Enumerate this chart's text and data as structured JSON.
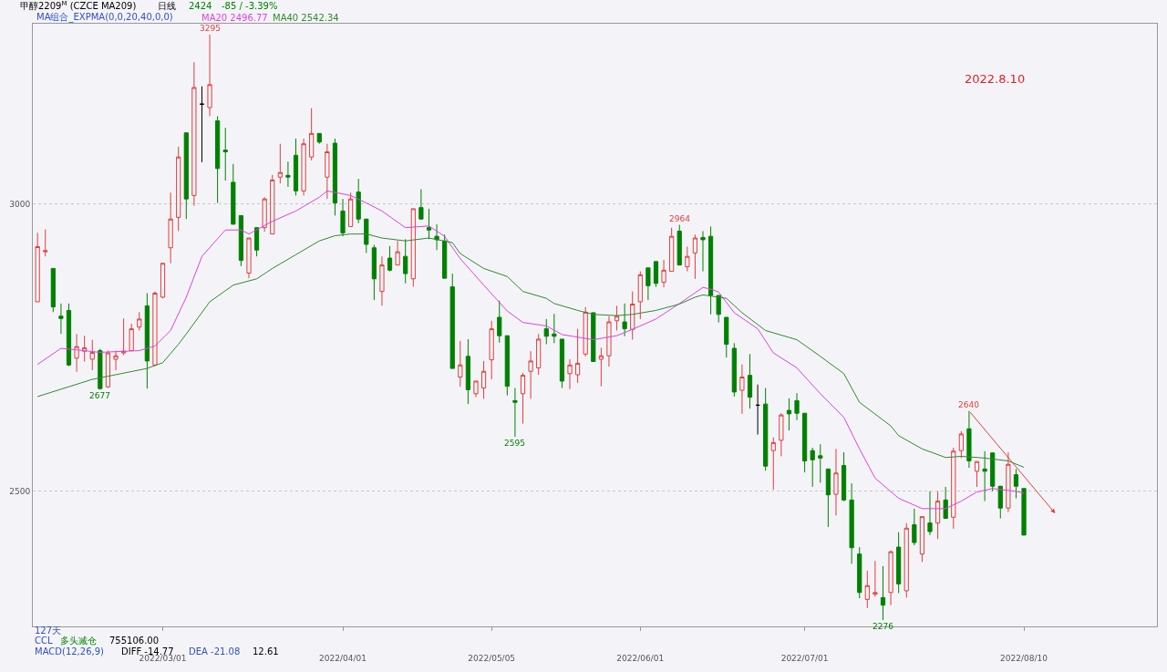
{
  "chart_data": {
    "type": "candlestick",
    "categories": [
      null,
      null,
      null,
      null,
      null,
      null,
      null,
      null,
      null,
      null,
      null,
      null,
      null,
      null,
      null,
      null,
      "2022/03/01",
      null,
      null,
      null,
      null,
      null,
      null,
      null,
      null,
      null,
      null,
      null,
      null,
      null,
      null,
      null,
      null,
      null,
      null,
      null,
      null,
      null,
      null,
      "2022/04/01",
      null,
      null,
      null,
      null,
      null,
      null,
      null,
      null,
      null,
      null,
      null,
      null,
      null,
      null,
      null,
      null,
      null,
      null,
      "2022/05/05",
      null,
      null,
      null,
      null,
      null,
      null,
      null,
      null,
      null,
      null,
      null,
      null,
      null,
      null,
      null,
      null,
      null,
      null,
      "2022/06/01",
      null,
      null,
      null,
      null,
      null,
      null,
      null,
      null,
      null,
      null,
      null,
      null,
      null,
      null,
      null,
      null,
      null,
      null,
      null,
      null,
      "2022/07/01",
      null,
      null,
      null,
      null,
      null,
      null,
      null,
      null,
      null,
      null,
      null,
      null,
      null,
      null,
      null,
      null,
      null,
      null,
      null,
      null,
      null,
      null,
      null,
      null,
      null,
      null,
      null,
      "2022/08/10"
    ],
    "ohlc": [
      [
        2830,
        2950,
        2830,
        2926
      ],
      [
        2917,
        2956,
        2909,
        2919
      ],
      [
        2888,
        2888,
        2812,
        2821
      ],
      [
        2805,
        2827,
        2774,
        2801
      ],
      [
        2815,
        2827,
        2718,
        2720
      ],
      [
        2732,
        2774,
        2708,
        2752
      ],
      [
        2744,
        2771,
        2726,
        2750
      ],
      [
        2730,
        2764,
        2711,
        2742
      ],
      [
        2745,
        2748,
        2677,
        2679
      ],
      [
        2682,
        2745,
        2680,
        2741
      ],
      [
        2730,
        2745,
        2711,
        2736
      ],
      [
        2741,
        2801,
        2737,
        2744
      ],
      [
        2745,
        2792,
        2744,
        2783
      ],
      [
        2786,
        2812,
        2780,
        2800
      ],
      [
        2823,
        2845,
        2679,
        2727
      ],
      [
        2720,
        2848,
        2718,
        2845
      ],
      [
        2838,
        2897,
        2836,
        2897
      ],
      [
        2924,
        3020,
        2897,
        2974
      ],
      [
        2977,
        3100,
        2953,
        3082
      ],
      [
        3124,
        3124,
        2974,
        3009
      ],
      [
        3015,
        3247,
        2997,
        3203
      ],
      [
        3174,
        3205,
        3073,
        3174
      ],
      [
        3168,
        3295,
        3153,
        3208
      ],
      [
        3145,
        3153,
        3002,
        3062
      ],
      [
        3094,
        3133,
        3041,
        3091
      ],
      [
        3038,
        3070,
        2965,
        2965
      ],
      [
        2980,
        2980,
        2892,
        2902
      ],
      [
        2880,
        2941,
        2871,
        2941
      ],
      [
        2959,
        2959,
        2909,
        2920
      ],
      [
        2959,
        3012,
        2952,
        3009
      ],
      [
        2948,
        3051,
        2948,
        3042
      ],
      [
        3047,
        3105,
        3036,
        3055
      ],
      [
        3050,
        3074,
        3030,
        3047
      ],
      [
        3085,
        3114,
        3015,
        3023
      ],
      [
        3023,
        3114,
        3015,
        3105
      ],
      [
        3082,
        3167,
        3076,
        3123
      ],
      [
        3123,
        3123,
        3105,
        3108
      ],
      [
        3047,
        3105,
        3009,
        3091
      ],
      [
        3106,
        3114,
        2980,
        3002
      ],
      [
        2988,
        3009,
        2944,
        2950
      ],
      [
        2961,
        3020,
        2961,
        3009
      ],
      [
        3021,
        3044,
        2967,
        2974
      ],
      [
        2974,
        2974,
        2915,
        2930
      ],
      [
        2924,
        2929,
        2833,
        2870
      ],
      [
        2848,
        2909,
        2823,
        2894
      ],
      [
        2906,
        2927,
        2883,
        2885
      ],
      [
        2894,
        2936,
        2894,
        2917
      ],
      [
        2909,
        2939,
        2862,
        2879
      ],
      [
        2870,
        2992,
        2856,
        2992
      ],
      [
        2994,
        3026,
        2974,
        2974
      ],
      [
        2959,
        2992,
        2939,
        2955
      ],
      [
        2944,
        2965,
        2920,
        2938
      ],
      [
        2936,
        2947,
        2871,
        2871
      ],
      [
        2856,
        2879,
        2714,
        2714
      ],
      [
        2699,
        2762,
        2682,
        2720
      ],
      [
        2735,
        2765,
        2652,
        2677
      ],
      [
        2670,
        2692,
        2664,
        2692
      ],
      [
        2680,
        2727,
        2661,
        2709
      ],
      [
        2729,
        2797,
        2695,
        2783
      ],
      [
        2803,
        2832,
        2759,
        2771
      ],
      [
        2771,
        2771,
        2667,
        2683
      ],
      [
        2658,
        2680,
        2595,
        2655
      ],
      [
        2670,
        2706,
        2618,
        2702
      ],
      [
        2709,
        2744,
        2661,
        2727
      ],
      [
        2715,
        2774,
        2703,
        2765
      ],
      [
        2783,
        2800,
        2756,
        2770
      ],
      [
        2774,
        2809,
        2758,
        2770
      ],
      [
        2765,
        2765,
        2680,
        2692
      ],
      [
        2705,
        2730,
        2678,
        2720
      ],
      [
        2703,
        2783,
        2689,
        2723
      ],
      [
        2739,
        2821,
        2735,
        2812
      ],
      [
        2811,
        2811,
        2726,
        2726
      ],
      [
        2730,
        2750,
        2683,
        2736
      ],
      [
        2736,
        2805,
        2717,
        2795
      ],
      [
        2797,
        2823,
        2780,
        2805
      ],
      [
        2795,
        2827,
        2770,
        2783
      ],
      [
        2782,
        2848,
        2764,
        2826
      ],
      [
        2830,
        2883,
        2800,
        2877
      ],
      [
        2889,
        2889,
        2833,
        2858
      ],
      [
        2900,
        2900,
        2856,
        2862
      ],
      [
        2864,
        2903,
        2855,
        2885
      ],
      [
        2883,
        2959,
        2883,
        2944
      ],
      [
        2953,
        2964,
        2894,
        2894
      ],
      [
        2891,
        2926,
        2883,
        2909
      ],
      [
        2915,
        2947,
        2870,
        2941
      ],
      [
        2942,
        2953,
        2883,
        2938
      ],
      [
        2944,
        2961,
        2808,
        2841
      ],
      [
        2841,
        2841,
        2794,
        2808
      ],
      [
        2803,
        2803,
        2733,
        2756
      ],
      [
        2749,
        2758,
        2665,
        2673
      ],
      [
        2676,
        2721,
        2635,
        2699
      ],
      [
        2702,
        2739,
        2644,
        2664
      ],
      [
        2650,
        2686,
        2599,
        2650
      ],
      [
        2652,
        2680,
        2536,
        2544
      ],
      [
        2571,
        2594,
        2503,
        2585
      ],
      [
        2589,
        2636,
        2561,
        2633
      ],
      [
        2641,
        2662,
        2606,
        2635
      ],
      [
        2658,
        2671,
        2624,
        2636
      ],
      [
        2636,
        2636,
        2533,
        2553
      ],
      [
        2571,
        2576,
        2508,
        2555
      ],
      [
        2562,
        2582,
        2515,
        2558
      ],
      [
        2539,
        2539,
        2438,
        2494
      ],
      [
        2495,
        2574,
        2458,
        2532
      ],
      [
        2545,
        2568,
        2483,
        2485
      ],
      [
        2485,
        2514,
        2374,
        2402
      ],
      [
        2391,
        2403,
        2314,
        2324
      ],
      [
        2312,
        2362,
        2297,
        2336
      ],
      [
        2321,
        2379,
        2317,
        2324
      ],
      [
        2315,
        2370,
        2276,
        2302
      ],
      [
        2324,
        2397,
        2302,
        2395
      ],
      [
        2403,
        2429,
        2323,
        2339
      ],
      [
        2327,
        2445,
        2315,
        2436
      ],
      [
        2442,
        2470,
        2406,
        2411
      ],
      [
        2391,
        2456,
        2377,
        2456
      ],
      [
        2445,
        2500,
        2424,
        2430
      ],
      [
        2445,
        2500,
        2417,
        2483
      ],
      [
        2485,
        2508,
        2453,
        2453
      ],
      [
        2455,
        2576,
        2435,
        2570
      ],
      [
        2571,
        2605,
        2558,
        2600
      ],
      [
        2609,
        2640,
        2541,
        2553
      ],
      [
        2535,
        2552,
        2508,
        2552
      ],
      [
        2539,
        2570,
        2483,
        2535
      ],
      [
        2567,
        2567,
        2500,
        2509
      ],
      [
        2509,
        2509,
        2453,
        2471
      ],
      [
        2471,
        2568,
        2464,
        2547
      ],
      [
        2529,
        2539,
        2488,
        2509
      ],
      [
        2505,
        2505,
        2423,
        2424
      ]
    ],
    "colors": [
      "#e03c3c",
      "#e03c3c",
      "#008000",
      "#008000",
      "#008000",
      "#e03c3c",
      "#e03c3c",
      "#e03c3c",
      "#008000",
      "#e03c3c",
      "#e03c3c",
      "#e03c3c",
      "#e03c3c",
      "#e03c3c",
      "#008000",
      "#e03c3c",
      "#e03c3c",
      "#e03c3c",
      "#e03c3c",
      "#008000",
      "#e03c3c",
      "#000000",
      "#e03c3c",
      "#008000",
      "#008000",
      "#008000",
      "#008000",
      "#e03c3c",
      "#008000",
      "#e03c3c",
      "#e03c3c",
      "#e03c3c",
      "#008000",
      "#008000",
      "#e03c3c",
      "#e03c3c",
      "#008000",
      "#e03c3c",
      "#008000",
      "#008000",
      "#e03c3c",
      "#008000",
      "#008000",
      "#008000",
      "#e03c3c",
      "#008000",
      "#e03c3c",
      "#008000",
      "#e03c3c",
      "#008000",
      "#008000",
      "#008000",
      "#008000",
      "#008000",
      "#e03c3c",
      "#008000",
      "#e03c3c",
      "#e03c3c",
      "#e03c3c",
      "#008000",
      "#008000",
      "#008000",
      "#e03c3c",
      "#e03c3c",
      "#e03c3c",
      "#008000",
      "#008000",
      "#008000",
      "#e03c3c",
      "#e03c3c",
      "#e03c3c",
      "#008000",
      "#e03c3c",
      "#e03c3c",
      "#e03c3c",
      "#008000",
      "#e03c3c",
      "#e03c3c",
      "#008000",
      "#008000",
      "#e03c3c",
      "#e03c3c",
      "#008000",
      "#e03c3c",
      "#e03c3c",
      "#008000",
      "#008000",
      "#008000",
      "#008000",
      "#008000",
      "#e03c3c",
      "#008000",
      "#000000",
      "#008000",
      "#e03c3c",
      "#e03c3c",
      "#008000",
      "#008000",
      "#008000",
      "#008000",
      "#008000",
      "#008000",
      "#e03c3c",
      "#008000",
      "#008000",
      "#008000",
      "#e03c3c",
      "#e03c3c",
      "#008000",
      "#e03c3c",
      "#008000",
      "#e03c3c",
      "#008000",
      "#e03c3c",
      "#008000",
      "#e03c3c",
      "#008000",
      "#e03c3c",
      "#e03c3c",
      "#008000",
      "#e03c3c",
      "#008000",
      "#008000",
      "#008000",
      "#e03c3c",
      "#008000",
      "#008000"
    ],
    "series": [
      {
        "type": "line",
        "name": "MA20 2496.77",
        "color": "#e040e0",
        "values": [
          2721,
          null,
          null,
          2749,
          null,
          null,
          null,
          null,
          2742,
          null,
          null,
          null,
          null,
          2745,
          null,
          2753,
          null,
          2780,
          null,
          2838,
          null,
          2909,
          null,
          null,
          2955,
          null,
          2955,
          2948,
          null,
          null,
          2970,
          null,
          null,
          2988,
          null,
          null,
          3012,
          3023,
          null,
          null,
          3015,
          null,
          3002,
          null,
          2988,
          null,
          null,
          2959,
          null,
          null,
          2962,
          null,
          2944,
          null,
          2905,
          null,
          null,
          2859,
          null,
          null,
          2814,
          null,
          2794,
          null,
          null,
          2788,
          null,
          2773,
          null,
          null,
          null,
          2764,
          null,
          null,
          2771,
          null,
          2782,
          null,
          null,
          2800,
          null,
          null,
          2827,
          null,
          null,
          2855,
          2852,
          2847,
          null,
          2811,
          null,
          null,
          2783,
          null,
          2741,
          null,
          null,
          2715,
          null,
          null,
          2670,
          null,
          null,
          2629,
          null,
          2574,
          null,
          2523,
          null,
          null,
          2488,
          null,
          null,
          2470,
          null,
          null,
          2470,
          null,
          2483,
          null,
          2499,
          null,
          2505,
          null,
          null,
          2500,
          2497
        ]
      },
      {
        "type": "line",
        "name": "MA40 2542.34",
        "color": "#2e8b2e",
        "values": [
          2665,
          null,
          null,
          null,
          null,
          null,
          null,
          2695,
          null,
          null,
          null,
          null,
          null,
          null,
          2714,
          null,
          2724,
          null,
          2756,
          2774,
          null,
          null,
          2830,
          null,
          null,
          2859,
          null,
          null,
          2870,
          null,
          2888,
          null,
          null,
          2912,
          null,
          null,
          2936,
          null,
          2945,
          null,
          2948,
          null,
          2948,
          null,
          2941,
          null,
          null,
          2936,
          null,
          null,
          2941,
          null,
          null,
          2933,
          2914,
          null,
          null,
          2888,
          null,
          null,
          2874,
          null,
          2848,
          null,
          null,
          2836,
          2827,
          null,
          null,
          2815,
          null,
          2808,
          null,
          null,
          2806,
          null,
          2808,
          null,
          null,
          2815,
          null,
          null,
          2826,
          null,
          2838,
          2842,
          null,
          null,
          2836,
          null,
          2811,
          null,
          null,
          2780,
          null,
          null,
          null,
          2764,
          null,
          null,
          2735,
          null,
          null,
          2705,
          null,
          2655,
          null,
          null,
          null,
          2614,
          2597,
          null,
          null,
          2574,
          null,
          null,
          2559,
          null,
          2561,
          null,
          null,
          2558,
          null,
          null,
          2553,
          null,
          2542
        ]
      }
    ],
    "ylim": [
      2265,
      3314
    ],
    "yticks": [
      2500,
      3000
    ],
    "grid": "y",
    "legend": false,
    "line_style": "solid",
    "annotations": [
      "甲醇2209$^{M}$ (CZCE MA209)",
      "日线",
      "2424",
      "-85 / -3.39%",
      "MA组合_EXPMA(0,0,20,40,0,0)",
      "2022.8.10",
      "127天",
      "CCL",
      "多头减仓",
      "755106.00",
      "MACD(12,26,9)",
      "DIFF -14.77",
      "DEA -21.08",
      "12.61",
      {
        "text": "3295",
        "y": 3295
      },
      {
        "text": "2677",
        "y": 2677
      },
      {
        "text": "2595",
        "y": 2595
      },
      {
        "text": "2964",
        "y": 2964
      },
      {
        "text": "2276",
        "y": 2276
      },
      {
        "text": "2640",
        "y": 2640
      }
    ]
  }
}
